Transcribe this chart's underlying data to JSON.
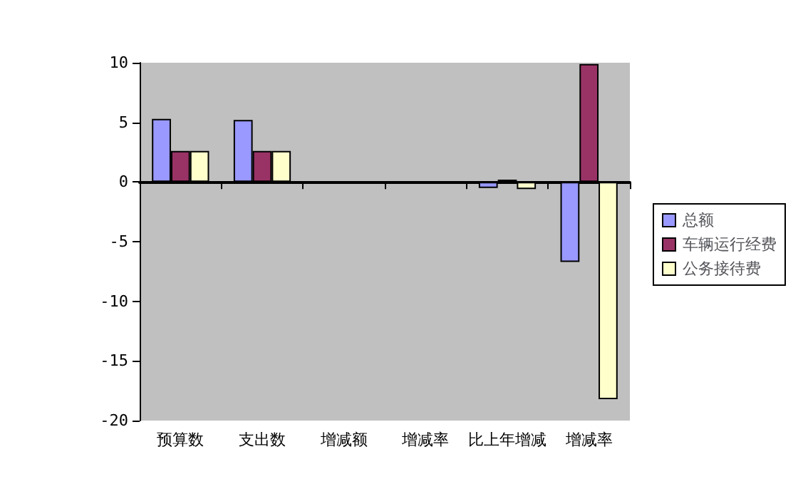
{
  "chart_data": {
    "type": "bar",
    "categories": [
      "预算数",
      "支出数",
      "增减额",
      "增减率",
      "比上年增减",
      "增减率"
    ],
    "series": [
      {
        "name": "总额",
        "color": "#9999ff",
        "values": [
          5.3,
          5.2,
          0,
          0,
          -0.5,
          -6.7
        ]
      },
      {
        "name": "车辆运行经费",
        "color": "#993366",
        "values": [
          2.6,
          2.6,
          0,
          0,
          0.2,
          9.9
        ]
      },
      {
        "name": "公务接待费",
        "color": "#ffffcc",
        "values": [
          2.6,
          2.6,
          0,
          0,
          -0.6,
          -18.2
        ]
      }
    ],
    "ylim": [
      -20,
      10
    ],
    "yticks": [
      -20,
      -15,
      -10,
      -5,
      0,
      5,
      10
    ],
    "legend": "right"
  }
}
